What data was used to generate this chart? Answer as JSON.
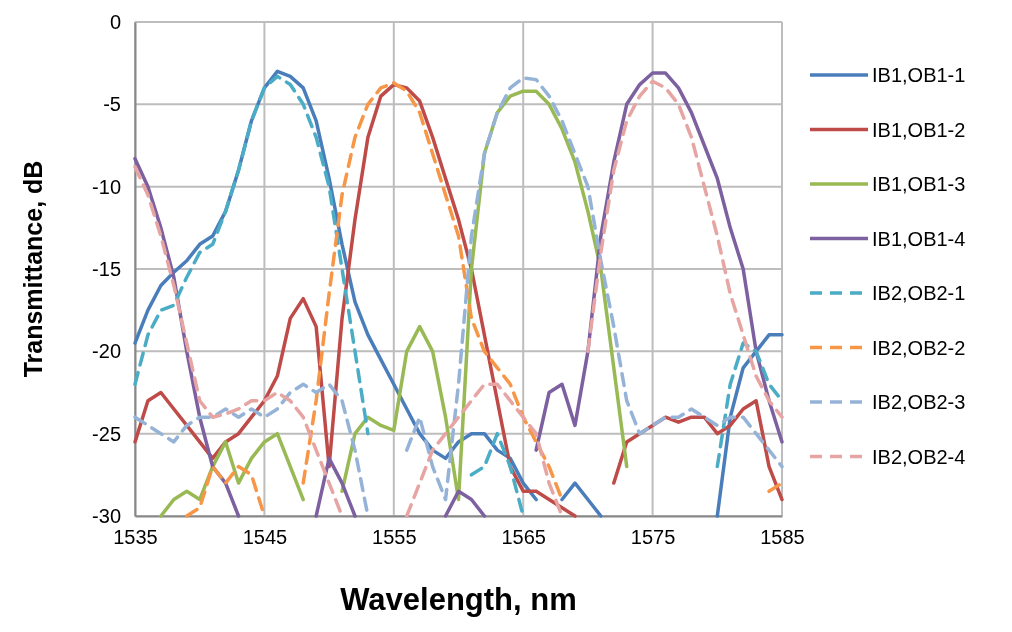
{
  "chart_data": {
    "type": "line",
    "xlabel": "Wavelength, nm",
    "ylabel": "Transmittance, dB",
    "xlim": [
      1535,
      1585
    ],
    "xticks": [
      1535,
      1545,
      1555,
      1565,
      1575,
      1585
    ],
    "ylim": [
      -30,
      0
    ],
    "yticks": [
      -30,
      -25,
      -20,
      -15,
      -10,
      -5,
      0
    ],
    "grid": true,
    "legend": "right",
    "marker": "none",
    "x": [
      1535,
      1536,
      1537,
      1538,
      1539,
      1540,
      1541,
      1542,
      1543,
      1544,
      1545,
      1546,
      1547,
      1548,
      1549,
      1550,
      1551,
      1552,
      1553,
      1554,
      1555,
      1556,
      1557,
      1558,
      1559,
      1560,
      1561,
      1562,
      1563,
      1564,
      1565,
      1566,
      1567,
      1568,
      1569,
      1570,
      1571,
      1572,
      1573,
      1574,
      1575,
      1576,
      1577,
      1578,
      1579,
      1580,
      1581,
      1582,
      1583,
      1584,
      1585
    ],
    "series": [
      {
        "name": "IB1,OB1-1",
        "color": "#4a7ebb",
        "line_style": "solid",
        "values": [
          -19.5,
          -17.5,
          -16,
          -15.2,
          -14.5,
          -13.5,
          -13,
          -11.5,
          -9,
          -6,
          -4,
          -3,
          -3.3,
          -4,
          -6,
          -9.5,
          -13.5,
          -17,
          -19,
          -20.5,
          -22,
          -23.5,
          -25,
          -26,
          -26.5,
          -25.5,
          -25,
          -25,
          -26,
          -26.5,
          -28,
          -29,
          null,
          -29,
          -28,
          -29,
          -30,
          null,
          null,
          null,
          null,
          null,
          null,
          null,
          null,
          -30,
          -24,
          -21,
          -20,
          -19,
          -19
        ]
      },
      {
        "name": "IB1,OB1-2",
        "color": "#be4b48",
        "line_style": "solid",
        "values": [
          -25.5,
          -23,
          -22.5,
          -23.5,
          -24.5,
          -25.5,
          -26.5,
          -25.5,
          -25,
          -24,
          -23,
          -21.5,
          -18,
          -16.8,
          -18.5,
          -27,
          -18,
          -12,
          -7,
          -4.5,
          -3.8,
          -4,
          -4.8,
          -7,
          -9.5,
          -12,
          -15,
          -19,
          -23,
          -27,
          -28.5,
          -28.5,
          -29,
          -29.5,
          -30,
          null,
          null,
          -28,
          -25.5,
          -25,
          -24.5,
          -24,
          -24.3,
          -24,
          -24,
          -25,
          -24.5,
          -23.5,
          -23,
          -27,
          -29
        ]
      },
      {
        "name": "IB1,OB1-3",
        "color": "#98b954",
        "line_style": "solid",
        "values": [
          null,
          null,
          -30,
          -29,
          -28.5,
          -29,
          -27,
          -25.5,
          -28,
          -26.5,
          -25.5,
          -25,
          -27,
          -29,
          null,
          null,
          -28.5,
          -25,
          -24,
          -24.5,
          -24.8,
          -20,
          -18.5,
          -20,
          -24,
          -29,
          -15,
          -8,
          -5.5,
          -4.5,
          -4.2,
          -4.2,
          -5,
          -6.5,
          -8.5,
          -11.5,
          -15,
          -21,
          -27,
          null,
          null,
          null,
          null,
          null,
          null,
          null,
          null,
          null,
          null,
          null,
          null
        ]
      },
      {
        "name": "IB1,OB1-4",
        "color": "#7d60a0",
        "line_style": "solid",
        "values": [
          -8.3,
          -10,
          -12.5,
          -15.5,
          -20,
          -24,
          -27,
          -28,
          -30,
          null,
          null,
          null,
          null,
          null,
          -30,
          -26.5,
          -28,
          -30,
          null,
          null,
          null,
          null,
          null,
          null,
          -30,
          -28.5,
          -29,
          -30,
          null,
          null,
          null,
          -26,
          -22.5,
          -22,
          -24.5,
          -20,
          -13,
          -8.5,
          -5,
          -3.8,
          -3.1,
          -3.1,
          -4,
          -5.5,
          -7.5,
          -9.5,
          -12.5,
          -15,
          -20,
          -23,
          -25.5
        ]
      },
      {
        "name": "IB2,OB2-1",
        "color": "#4bacc6",
        "line_style": "dashed",
        "values": [
          -22,
          -19,
          -17.5,
          -17.2,
          -15.5,
          -14,
          -13.5,
          -11.5,
          -9,
          -6,
          -4,
          -3.3,
          -3.8,
          -5,
          -7,
          -10,
          -15,
          -20,
          -25,
          null,
          null,
          null,
          null,
          null,
          null,
          null,
          -27.5,
          -27,
          -25,
          -27,
          -30,
          null,
          null,
          null,
          null,
          null,
          null,
          null,
          null,
          null,
          null,
          null,
          null,
          null,
          null,
          -27,
          -22,
          -19.5,
          -20,
          -22,
          -23
        ]
      },
      {
        "name": "IB2,OB2-2",
        "color": "#f79646",
        "line_style": "dashed",
        "values": [
          null,
          null,
          null,
          null,
          -30,
          -29.5,
          -27,
          -28,
          -27,
          -27.5,
          -30,
          null,
          null,
          -28,
          -23,
          -16.5,
          -10.5,
          -7,
          -5,
          -4,
          -3.7,
          -4.2,
          -5.5,
          -8,
          -10.5,
          -13,
          -18,
          -20,
          -21,
          -22,
          -24,
          -25.5,
          -27,
          -29,
          null,
          null,
          null,
          null,
          null,
          null,
          null,
          null,
          null,
          null,
          null,
          null,
          null,
          null,
          null,
          -28.5,
          -28
        ]
      },
      {
        "name": "IB2,OB2-3",
        "color": "#95b3d7",
        "line_style": "dashed",
        "values": [
          -24,
          -24.5,
          -25,
          -25.5,
          -24.5,
          -24,
          -24,
          -23.5,
          -24,
          -23.5,
          -24,
          -23.5,
          -22.5,
          -22,
          -22.5,
          -22,
          -23,
          -26,
          -30,
          null,
          null,
          -26,
          -24,
          -27,
          -29,
          -22,
          -13,
          -8,
          -5.5,
          -4,
          -3.4,
          -3.5,
          -4.5,
          -6,
          -8,
          -10,
          -14.5,
          -18.5,
          -23,
          -25,
          -24.5,
          -24,
          -24,
          -23.5,
          -24,
          -24.5,
          -24,
          -24,
          -25,
          -26,
          -27
        ]
      },
      {
        "name": "IB2,OB2-4",
        "color": "#e6a5a3",
        "line_style": "dashed",
        "values": [
          -8.8,
          -10.5,
          -13,
          -16,
          -19.5,
          -23,
          -24,
          -23.8,
          -23.5,
          -23,
          -23,
          -22.5,
          -23,
          -24,
          -26,
          -28,
          -30,
          null,
          null,
          null,
          null,
          -30,
          -28,
          -26,
          -25,
          -24,
          -23,
          -22,
          -22,
          -23,
          -24,
          -25,
          -28,
          -30,
          null,
          -20,
          -14,
          -9,
          -6,
          -4.5,
          -3.6,
          -4,
          -5,
          -7,
          -10,
          -13,
          -16.5,
          -19,
          -21.5,
          -23,
          -24
        ]
      }
    ]
  }
}
